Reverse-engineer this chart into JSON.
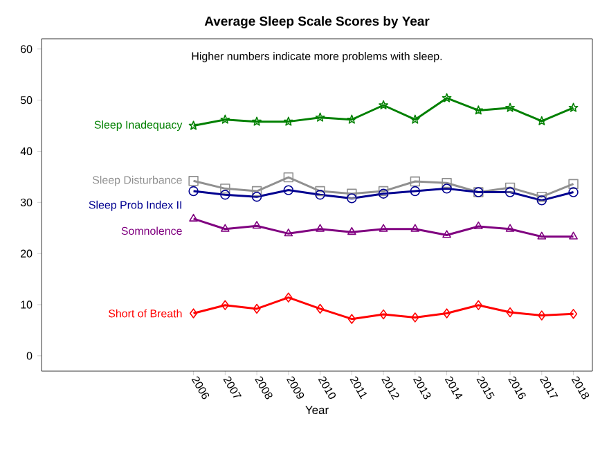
{
  "chart_data": {
    "type": "line",
    "title": "Average Sleep Scale Scores by Year",
    "xlabel": "Year",
    "annotations": [
      "Higher numbers indicate more problems with sleep."
    ],
    "categories": [
      "2006",
      "2007",
      "2008",
      "2009",
      "2010",
      "2011",
      "2012",
      "2013",
      "2014",
      "2015",
      "2016",
      "2017",
      "2018"
    ],
    "ylim": [
      -3,
      62
    ],
    "yticks": [
      {
        "value": 0,
        "label": "0"
      },
      {
        "value": 10,
        "label": "10"
      },
      {
        "value": 20,
        "label": "20"
      },
      {
        "value": 30,
        "label": "30"
      },
      {
        "value": 40,
        "label": "40"
      },
      {
        "value": 50,
        "label": "50"
      },
      {
        "value": 60,
        "label": "60"
      }
    ],
    "series": [
      {
        "name": "Sleep Inadequacy",
        "color": "#008000",
        "marker": "star",
        "values": [
          45.0,
          46.2,
          45.8,
          45.8,
          46.6,
          46.2,
          49.0,
          46.2,
          50.4,
          48.0,
          48.5,
          45.9,
          48.5
        ]
      },
      {
        "name": "Sleep Disturbance",
        "color": "#909090",
        "marker": "square",
        "values": [
          34.2,
          32.7,
          32.2,
          34.9,
          32.2,
          31.7,
          32.2,
          34.1,
          33.8,
          32.0,
          32.9,
          31.1,
          33.6
        ]
      },
      {
        "name": "Sleep Prob Index II",
        "color": "#000090",
        "marker": "circle",
        "values": [
          32.2,
          31.5,
          31.1,
          32.4,
          31.5,
          30.8,
          31.7,
          32.2,
          32.7,
          32.0,
          32.0,
          30.4,
          32.0
        ]
      },
      {
        "name": "Somnolence",
        "color": "#800080",
        "marker": "triangle",
        "values": [
          26.8,
          24.8,
          25.4,
          23.9,
          24.8,
          24.2,
          24.8,
          24.8,
          23.6,
          25.3,
          24.8,
          23.3,
          23.3
        ]
      },
      {
        "name": "Short of Breath",
        "color": "#ff0000",
        "marker": "diamond",
        "values": [
          8.3,
          9.9,
          9.2,
          11.4,
          9.2,
          7.2,
          8.1,
          7.5,
          8.3,
          9.9,
          8.5,
          7.9,
          8.2
        ]
      }
    ]
  }
}
